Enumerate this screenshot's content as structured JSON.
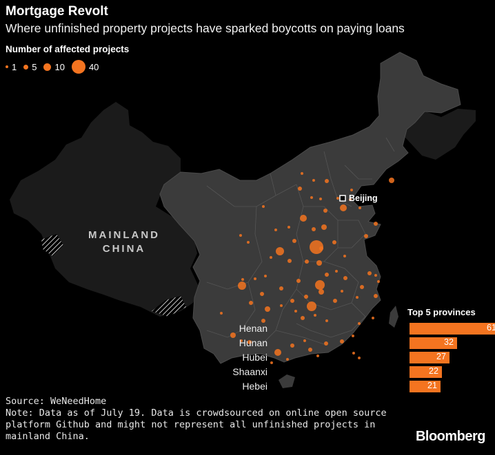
{
  "title": "Mortgage Revolt",
  "subtitle": "Where unfinished property projects have sparked boycotts on paying loans",
  "legend": {
    "title": "Number of affected projects",
    "items": [
      {
        "label": "1",
        "value": 1
      },
      {
        "label": "5",
        "value": 5
      },
      {
        "label": "10",
        "value": 10
      },
      {
        "label": "40",
        "value": 40
      }
    ]
  },
  "map": {
    "region_label_line1": "MAINLAND",
    "region_label_line2": "CHINA",
    "capital_label": "Beijing",
    "colors": {
      "land": "#3a3a3a",
      "outer_land": "#1a1a1a",
      "borders": "#5a5a5a",
      "bubble": "#f47420"
    }
  },
  "top5": {
    "title": "Top 5 provinces",
    "provinces": [
      {
        "name": "Henan",
        "value": 61
      },
      {
        "name": "Hunan",
        "value": 32
      },
      {
        "name": "Hubei",
        "value": 27
      },
      {
        "name": "Shaanxi",
        "value": 22
      },
      {
        "name": "Hebei",
        "value": 21
      }
    ]
  },
  "source": "Source: WeNeedHome",
  "note": "Note: Data as of July 19. Data is crowdsourced on online open source platform Github and might not represent all unfinished projects in mainland China.",
  "brand": "Bloomberg"
}
